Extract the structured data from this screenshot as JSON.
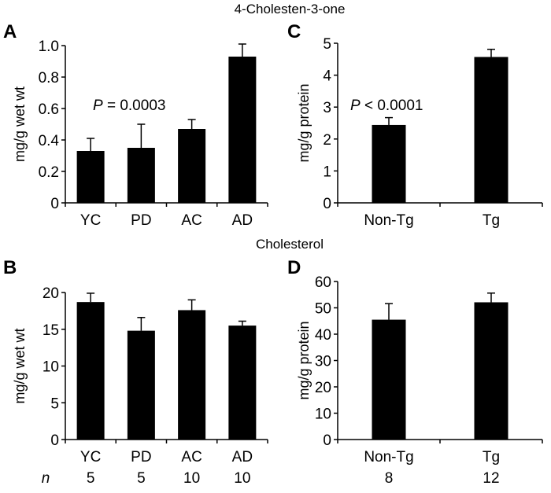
{
  "titles": {
    "top": "4-Cholesten-3-one",
    "bottom": "Cholesterol"
  },
  "n_label": "n",
  "chart_data": [
    {
      "panel": "A",
      "type": "bar",
      "categories": [
        "YC",
        "PD",
        "AC",
        "AD"
      ],
      "values": [
        0.33,
        0.35,
        0.47,
        0.93
      ],
      "errors": [
        0.08,
        0.15,
        0.06,
        0.08
      ],
      "ylabel": "mg/g wet wt",
      "ylim": [
        0,
        1.0
      ],
      "yticks": [
        "0",
        "0.2",
        "0.4",
        "0.6",
        "0.8",
        "1.0"
      ],
      "annotation": {
        "italic": "P",
        "text": " = 0.0003"
      },
      "bar_color": "#000000"
    },
    {
      "panel": "B",
      "type": "bar",
      "categories": [
        "YC",
        "PD",
        "AC",
        "AD"
      ],
      "values": [
        18.7,
        14.8,
        17.6,
        15.5
      ],
      "errors": [
        1.2,
        1.8,
        1.4,
        0.6
      ],
      "n": [
        "5",
        "5",
        "10",
        "10"
      ],
      "ylabel": "mg/g wet wt",
      "ylim": [
        0,
        20
      ],
      "yticks": [
        "0",
        "5",
        "10",
        "15",
        "20"
      ],
      "bar_color": "#000000"
    },
    {
      "panel": "C",
      "type": "bar",
      "categories": [
        "Non-Tg",
        "Tg"
      ],
      "values": [
        2.44,
        4.57
      ],
      "errors": [
        0.23,
        0.24
      ],
      "ylabel": "mg/g protein",
      "ylim": [
        0,
        5
      ],
      "yticks": [
        "0",
        "1",
        "2",
        "3",
        "4",
        "5"
      ],
      "annotation": {
        "italic": "P",
        "text": " < 0.0001"
      },
      "bar_color": "#000000"
    },
    {
      "panel": "D",
      "type": "bar",
      "categories": [
        "Non-Tg",
        "Tg"
      ],
      "values": [
        45.5,
        52.1
      ],
      "errors": [
        6.1,
        3.5
      ],
      "n": [
        "8",
        "12"
      ],
      "ylabel": "mg/g protein",
      "ylim": [
        0,
        60
      ],
      "yticks": [
        "0",
        "10",
        "20",
        "30",
        "40",
        "50",
        "60"
      ],
      "bar_color": "#000000"
    }
  ]
}
